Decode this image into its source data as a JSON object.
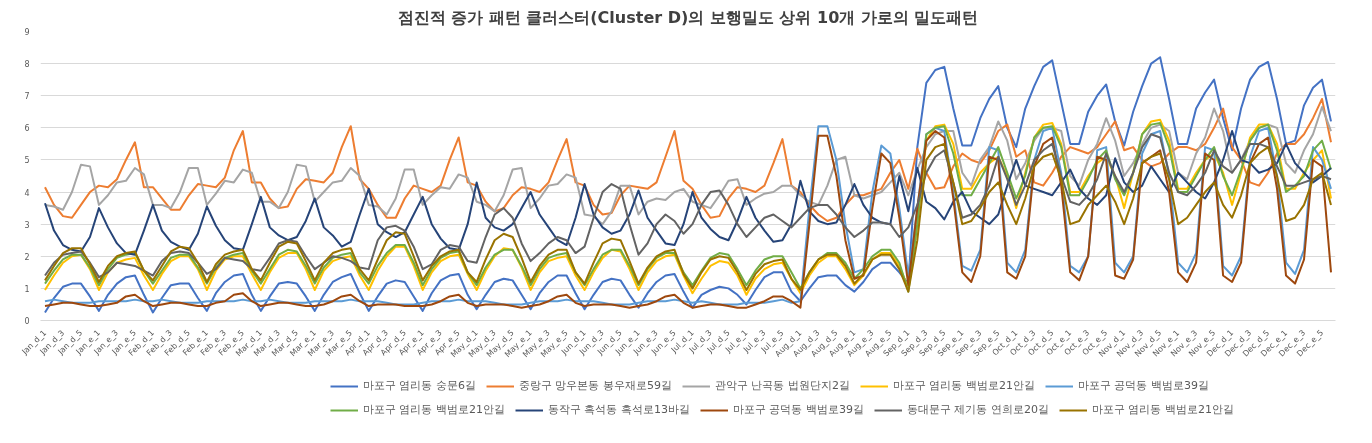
{
  "chart_data": {
    "type": "line",
    "title": "점진적 증가 패턴 클러스터(Cluster D)의 보행밀도 상위 10개 가로의 밀도패턴",
    "categories": [
      "Jan_d_1",
      null,
      "Jan_d_3",
      null,
      "Jan_d_5",
      null,
      "Jan_e_1",
      null,
      "Jan_e_3",
      null,
      "Jan_e_5",
      null,
      "Feb_d_1",
      null,
      "Feb_d_3",
      null,
      "Feb_d_5",
      null,
      "Feb_e_1",
      null,
      "Feb_e_3",
      null,
      "Feb_e_5",
      null,
      "Mar_d_1",
      null,
      "Mar_d_3",
      null,
      "Mar_d_5",
      null,
      "Mar_e_1",
      null,
      "Mar_e_3",
      null,
      "Mar_e_5",
      null,
      "Apr_d_1",
      null,
      "Apr_d_3",
      null,
      "Apr_d_5",
      null,
      "Apr_e_1",
      null,
      "Apr_e_3",
      null,
      "Apr_e_5",
      null,
      "May_d_1",
      null,
      "May_d_3",
      null,
      "May_d_5",
      null,
      "May_e_1",
      null,
      "May_e_3",
      null,
      "May_e_5",
      null,
      "Jun_d_1",
      null,
      "Jun_d_3",
      null,
      "Jun_d_5",
      null,
      "Jun_e_1",
      null,
      "Jun_e_3",
      null,
      "Jun_e_5",
      null,
      "Jul_d_1",
      null,
      "Jul_d_3",
      null,
      "Jul_d_5",
      null,
      "Jul_e_1",
      null,
      "Jul_e_3",
      null,
      "Jul_e_5",
      null,
      "Aug_d_1",
      null,
      "Aug_d_3",
      null,
      "Aug_d_5",
      null,
      "Aug_e_1",
      null,
      "Aug_e_3",
      null,
      "Aug_e_5",
      null,
      "Sep_d_1",
      null,
      "Sep_d_3",
      null,
      "Sep_d_5",
      null,
      "Sep_e_1",
      null,
      "Sep_e_3",
      null,
      "Sep_e_5",
      null,
      "Oct_d_1",
      null,
      "Oct_d_3",
      null,
      "Oct_d_5",
      null,
      "Oct_e_1",
      null,
      "Oct_e_3",
      null,
      "Oct_e_5",
      null,
      "Nov_d_1",
      null,
      "Nov_d_3",
      null,
      "Nov_d_5",
      null,
      "Nov_e_1",
      null,
      "Nov_e_3",
      null,
      "Nov_e_5",
      null,
      "Dec_d_1",
      null,
      "Dec_d_3",
      null,
      "Dec_d_5",
      null,
      "Dec_e_1",
      null,
      "Dec_e_3",
      null,
      "Dec_e_5",
      null
    ],
    "ylim": [
      0,
      9
    ],
    "yticks": [
      0,
      1,
      2,
      3,
      4,
      5,
      6,
      7,
      8,
      9
    ],
    "grid": "y",
    "legend": "bottom",
    "series": [
      {
        "name": "마포구 염리동 숭문6길",
        "color": "#4472c4",
        "values": [
          0.25,
          0.7,
          1.05,
          1.15,
          1.15,
          0.75,
          0.3,
          0.8,
          1.15,
          1.35,
          1.4,
          0.8,
          0.25,
          0.7,
          1.1,
          1.15,
          1.15,
          0.7,
          0.3,
          0.85,
          1.2,
          1.4,
          1.45,
          0.8,
          0.3,
          0.75,
          1.15,
          1.2,
          1.15,
          0.75,
          0.3,
          0.8,
          1.2,
          1.35,
          1.45,
          0.85,
          0.3,
          0.75,
          1.15,
          1.25,
          1.2,
          0.75,
          0.3,
          0.85,
          1.25,
          1.4,
          1.45,
          0.8,
          0.35,
          0.8,
          1.2,
          1.3,
          1.25,
          0.8,
          0.35,
          0.85,
          1.2,
          1.4,
          1.4,
          0.85,
          0.35,
          0.8,
          1.2,
          1.3,
          1.25,
          0.8,
          0.4,
          0.85,
          1.2,
          1.4,
          1.45,
          0.9,
          0.4,
          0.8,
          0.95,
          1.05,
          1.0,
          0.8,
          0.5,
          0.95,
          1.35,
          1.5,
          1.5,
          0.9,
          0.6,
          1.0,
          1.35,
          1.4,
          1.4,
          1.1,
          0.9,
          1.2,
          1.6,
          1.8,
          1.8,
          1.5,
          1.15,
          5.4,
          7.4,
          7.8,
          7.9,
          6.6,
          5.45,
          5.45,
          6.3,
          6.9,
          7.3,
          6.0,
          5.4,
          6.6,
          7.3,
          7.9,
          8.1,
          6.8,
          5.5,
          5.5,
          6.5,
          7.0,
          7.35,
          6.2,
          5.45,
          6.5,
          7.3,
          8.0,
          8.2,
          6.9,
          5.5,
          5.5,
          6.6,
          7.1,
          7.5,
          6.3,
          5.3,
          6.6,
          7.5,
          7.9,
          8.05,
          6.9,
          5.5,
          5.6,
          6.7,
          7.25,
          7.5,
          6.2
        ]
      },
      {
        "name": "중랑구 망우본동 봉우재로59길",
        "color": "#ed7d31",
        "values": [
          4.15,
          3.6,
          3.25,
          3.2,
          3.6,
          4.0,
          4.2,
          4.15,
          4.4,
          5.0,
          5.55,
          4.15,
          4.15,
          3.8,
          3.45,
          3.45,
          3.9,
          4.25,
          4.2,
          4.15,
          4.45,
          5.3,
          5.9,
          4.3,
          4.3,
          3.8,
          3.5,
          3.55,
          4.1,
          4.4,
          4.35,
          4.3,
          4.6,
          5.4,
          6.05,
          4.4,
          4.1,
          3.6,
          3.2,
          3.2,
          3.8,
          4.2,
          4.1,
          4.0,
          4.2,
          5.0,
          5.7,
          4.3,
          4.2,
          3.7,
          3.4,
          3.5,
          3.9,
          4.15,
          4.1,
          4.0,
          4.3,
          5.0,
          5.65,
          4.3,
          4.2,
          3.6,
          3.3,
          3.35,
          3.9,
          4.2,
          4.15,
          4.1,
          4.3,
          5.1,
          5.9,
          4.35,
          4.1,
          3.6,
          3.2,
          3.25,
          3.8,
          4.15,
          4.1,
          4.0,
          4.2,
          4.9,
          5.65,
          4.2,
          4.0,
          3.6,
          3.3,
          3.1,
          3.2,
          3.6,
          3.9,
          3.9,
          4.0,
          4.1,
          4.6,
          5.0,
          4.1,
          5.35,
          4.6,
          4.1,
          4.15,
          4.8,
          5.2,
          5.0,
          4.9,
          5.3,
          5.9,
          6.1,
          5.1,
          5.3,
          4.3,
          4.2,
          4.6,
          5.1,
          5.4,
          5.3,
          5.2,
          5.4,
          5.8,
          6.2,
          5.3,
          5.4,
          5.0,
          4.8,
          4.9,
          5.2,
          5.4,
          5.4,
          5.3,
          5.5,
          6.0,
          6.6,
          5.4,
          5.0,
          4.3,
          4.2,
          4.6,
          5.2,
          5.5,
          5.5,
          5.8,
          6.3,
          6.9,
          5.55
        ]
      },
      {
        "name": "관악구 난곡동 법원단지2길",
        "color": "#a5a5a5",
        "values": [
          3.6,
          3.55,
          3.45,
          4.0,
          4.85,
          4.8,
          3.6,
          3.9,
          4.3,
          4.35,
          4.75,
          4.55,
          3.6,
          3.6,
          3.5,
          4.0,
          4.75,
          4.75,
          3.6,
          3.95,
          4.35,
          4.3,
          4.7,
          4.6,
          3.7,
          3.7,
          3.5,
          4.0,
          4.85,
          4.8,
          3.7,
          4.0,
          4.3,
          4.35,
          4.75,
          4.5,
          3.6,
          3.55,
          3.3,
          3.8,
          4.7,
          4.7,
          3.6,
          3.9,
          4.15,
          4.1,
          4.55,
          4.45,
          3.7,
          3.6,
          3.4,
          3.9,
          4.7,
          4.75,
          3.5,
          3.8,
          4.2,
          4.25,
          4.55,
          4.45,
          3.3,
          3.25,
          3.0,
          3.4,
          4.2,
          4.2,
          3.3,
          3.7,
          3.8,
          3.75,
          4.0,
          4.1,
          3.7,
          3.6,
          3.5,
          3.9,
          4.35,
          4.4,
          3.6,
          3.8,
          3.95,
          4.0,
          4.2,
          4.2,
          3.9,
          3.7,
          3.6,
          4.2,
          5.0,
          5.1,
          3.9,
          3.8,
          3.9,
          4.0,
          4.3,
          4.6,
          3.9,
          4.7,
          5.4,
          5.8,
          5.9,
          5.9,
          4.6,
          4.2,
          5.0,
          5.4,
          6.2,
          5.6,
          4.4,
          4.9,
          5.6,
          6.0,
          6.0,
          5.9,
          4.5,
          4.2,
          5.0,
          5.5,
          6.3,
          5.6,
          4.5,
          4.9,
          5.5,
          6.0,
          6.1,
          5.9,
          4.6,
          4.4,
          5.2,
          5.7,
          6.6,
          5.9,
          4.6,
          5.0,
          5.6,
          6.0,
          6.1,
          6.0,
          4.9,
          4.6,
          5.3,
          5.8,
          6.65,
          5.9
        ]
      },
      {
        "name": "마포구 염리동 백범로21안길",
        "color": "#ffc000",
        "values": [
          0.95,
          1.4,
          1.8,
          2.0,
          2.05,
          1.6,
          0.95,
          1.5,
          1.8,
          1.9,
          1.95,
          1.4,
          0.95,
          1.45,
          1.85,
          2.0,
          2.0,
          1.6,
          0.95,
          1.55,
          1.9,
          2.0,
          2.0,
          1.45,
          0.95,
          1.5,
          1.95,
          2.1,
          2.1,
          1.6,
          0.95,
          1.55,
          1.85,
          1.95,
          2.0,
          1.4,
          0.95,
          1.55,
          2.0,
          2.3,
          2.3,
          1.7,
          0.95,
          1.5,
          1.85,
          2.0,
          2.05,
          1.45,
          0.95,
          1.55,
          2.0,
          2.25,
          2.2,
          1.65,
          0.95,
          1.5,
          1.85,
          1.95,
          2.0,
          1.4,
          0.95,
          1.5,
          1.95,
          2.2,
          2.15,
          1.6,
          0.95,
          1.5,
          1.85,
          2.0,
          2.05,
          1.4,
          0.85,
          1.3,
          1.7,
          1.85,
          1.8,
          1.4,
          0.8,
          1.3,
          1.6,
          1.75,
          1.8,
          1.3,
          0.85,
          1.4,
          1.8,
          2.0,
          2.0,
          1.6,
          1.1,
          1.4,
          1.9,
          2.1,
          2.1,
          1.7,
          1.0,
          3.0,
          5.6,
          6.05,
          6.1,
          5.5,
          4.1,
          4.1,
          4.6,
          4.9,
          5.1,
          4.5,
          3.5,
          4.6,
          5.7,
          6.1,
          6.15,
          5.5,
          4.0,
          4.0,
          4.5,
          4.9,
          5.1,
          4.5,
          3.5,
          4.6,
          5.8,
          6.2,
          6.25,
          5.6,
          4.1,
          4.1,
          4.6,
          5.0,
          5.2,
          4.6,
          3.6,
          4.6,
          5.7,
          6.1,
          6.1,
          5.5,
          4.1,
          4.1,
          4.6,
          5.0,
          5.3,
          3.8
        ]
      },
      {
        "name": "마포구 공덕동 백범로39길",
        "color": "#5b9bd5",
        "values": [
          0.6,
          0.65,
          0.6,
          0.55,
          0.55,
          0.55,
          0.6,
          0.6,
          0.6,
          0.6,
          0.65,
          0.6,
          0.6,
          0.65,
          0.6,
          0.55,
          0.55,
          0.55,
          0.6,
          0.6,
          0.6,
          0.6,
          0.65,
          0.6,
          0.6,
          0.65,
          0.6,
          0.55,
          0.55,
          0.55,
          0.6,
          0.6,
          0.6,
          0.6,
          0.65,
          0.6,
          0.6,
          0.6,
          0.55,
          0.5,
          0.5,
          0.5,
          0.55,
          0.6,
          0.6,
          0.6,
          0.65,
          0.6,
          0.6,
          0.6,
          0.55,
          0.5,
          0.5,
          0.5,
          0.55,
          0.6,
          0.6,
          0.6,
          0.65,
          0.6,
          0.6,
          0.6,
          0.55,
          0.5,
          0.5,
          0.5,
          0.55,
          0.6,
          0.6,
          0.6,
          0.65,
          0.6,
          0.55,
          0.6,
          0.55,
          0.5,
          0.5,
          0.5,
          0.55,
          0.55,
          0.55,
          0.6,
          0.65,
          0.55,
          0.6,
          3.5,
          6.05,
          6.05,
          5.0,
          3.0,
          1.5,
          1.6,
          4.0,
          5.45,
          5.2,
          3.5,
          1.4,
          3.5,
          5.8,
          6.0,
          5.9,
          4.0,
          1.7,
          1.55,
          2.2,
          5.4,
          5.3,
          1.8,
          1.5,
          2.2,
          5.0,
          5.9,
          6.0,
          4.6,
          1.7,
          1.5,
          2.0,
          5.3,
          5.4,
          1.8,
          1.5,
          2.0,
          5.2,
          5.8,
          5.9,
          4.5,
          1.8,
          1.5,
          2.1,
          5.4,
          5.3,
          1.7,
          1.4,
          2.0,
          5.1,
          5.9,
          6.0,
          4.5,
          1.8,
          1.45,
          2.2,
          5.4,
          5.0,
          4.1
        ]
      },
      {
        "name": "마포구 염리동 백범로21안길",
        "color": "#70ad47",
        "values": [
          1.15,
          1.55,
          1.9,
          2.05,
          2.05,
          1.65,
          1.1,
          1.6,
          1.95,
          2.05,
          2.1,
          1.55,
          1.15,
          1.55,
          1.95,
          2.05,
          2.05,
          1.65,
          1.15,
          1.65,
          1.95,
          2.05,
          2.1,
          1.55,
          1.15,
          1.6,
          2.05,
          2.2,
          2.15,
          1.7,
          1.15,
          1.65,
          1.95,
          2.05,
          2.1,
          1.5,
          1.15,
          1.7,
          2.1,
          2.35,
          2.35,
          1.8,
          1.1,
          1.6,
          1.95,
          2.1,
          2.15,
          1.5,
          1.1,
          1.65,
          2.05,
          2.2,
          2.2,
          1.7,
          1.1,
          1.6,
          1.95,
          2.05,
          2.1,
          1.5,
          1.1,
          1.6,
          2.05,
          2.2,
          2.2,
          1.7,
          1.1,
          1.6,
          1.95,
          2.1,
          2.1,
          1.5,
          1.1,
          1.55,
          1.95,
          2.1,
          2.05,
          1.6,
          1.1,
          1.55,
          1.9,
          2.0,
          2.0,
          1.5,
          1.0,
          1.5,
          1.9,
          2.1,
          2.1,
          1.8,
          1.3,
          1.6,
          2.0,
          2.2,
          2.2,
          1.8,
          0.9,
          3.0,
          5.8,
          6.0,
          6.05,
          5.2,
          3.9,
          3.9,
          4.4,
          4.9,
          5.4,
          4.6,
          3.8,
          4.5,
          5.7,
          6.0,
          6.05,
          5.4,
          3.9,
          3.9,
          4.4,
          5.0,
          5.3,
          4.4,
          3.9,
          4.6,
          5.8,
          6.1,
          6.15,
          5.4,
          4.0,
          4.0,
          4.5,
          5.0,
          5.4,
          4.5,
          3.9,
          4.7,
          5.6,
          6.0,
          6.1,
          5.3,
          4.0,
          4.2,
          4.5,
          5.3,
          5.6,
          4.7
        ]
      },
      {
        "name": "동작구 흑석동 흑석로13바길",
        "color": "#264478",
        "values": [
          3.65,
          2.8,
          2.35,
          2.2,
          2.15,
          2.6,
          3.5,
          2.9,
          2.4,
          2.1,
          2.05,
          2.8,
          3.6,
          2.8,
          2.45,
          2.3,
          2.2,
          2.7,
          3.55,
          2.95,
          2.5,
          2.25,
          2.2,
          3.0,
          3.85,
          2.9,
          2.65,
          2.5,
          2.6,
          3.1,
          3.8,
          2.9,
          2.65,
          2.3,
          2.45,
          3.3,
          4.1,
          3.0,
          2.75,
          2.6,
          2.75,
          3.3,
          3.85,
          3.0,
          2.55,
          2.25,
          2.2,
          3.0,
          4.3,
          3.2,
          2.9,
          2.8,
          3.0,
          3.5,
          4.0,
          3.3,
          2.9,
          2.5,
          2.35,
          3.2,
          4.25,
          3.3,
          2.9,
          2.7,
          2.8,
          3.3,
          4.05,
          3.2,
          2.8,
          2.4,
          2.35,
          3.0,
          4.0,
          3.2,
          2.85,
          2.6,
          2.5,
          3.1,
          3.85,
          3.2,
          2.8,
          2.45,
          2.5,
          3.0,
          4.35,
          3.4,
          3.1,
          3.0,
          3.05,
          3.6,
          4.25,
          3.6,
          3.2,
          3.05,
          3.0,
          4.5,
          3.4,
          4.75,
          3.7,
          3.5,
          3.15,
          3.7,
          4.0,
          3.4,
          3.2,
          3.0,
          3.3,
          4.2,
          5.0,
          4.2,
          4.1,
          4.0,
          3.9,
          4.3,
          4.7,
          4.1,
          3.8,
          3.6,
          3.9,
          5.05,
          4.3,
          4.0,
          4.2,
          4.8,
          4.4,
          4.0,
          4.6,
          4.3,
          4.0,
          3.8,
          4.3,
          5.0,
          5.9,
          5.0,
          4.9,
          4.6,
          4.7,
          4.9,
          5.5,
          4.9,
          4.6,
          4.3,
          4.5,
          4.75
        ]
      },
      {
        "name": "마포구 공덕동 백범로39길",
        "color": "#9e480e",
        "values": [
          0.45,
          0.5,
          0.55,
          0.55,
          0.5,
          0.45,
          0.45,
          0.5,
          0.55,
          0.75,
          0.8,
          0.6,
          0.45,
          0.5,
          0.55,
          0.55,
          0.5,
          0.45,
          0.45,
          0.55,
          0.6,
          0.8,
          0.85,
          0.6,
          0.45,
          0.5,
          0.55,
          0.55,
          0.5,
          0.45,
          0.45,
          0.5,
          0.6,
          0.75,
          0.8,
          0.6,
          0.45,
          0.5,
          0.5,
          0.5,
          0.45,
          0.45,
          0.45,
          0.5,
          0.6,
          0.75,
          0.8,
          0.55,
          0.45,
          0.5,
          0.5,
          0.5,
          0.45,
          0.4,
          0.45,
          0.5,
          0.6,
          0.75,
          0.8,
          0.55,
          0.45,
          0.5,
          0.5,
          0.5,
          0.45,
          0.4,
          0.45,
          0.5,
          0.6,
          0.75,
          0.8,
          0.55,
          0.4,
          0.45,
          0.5,
          0.5,
          0.45,
          0.4,
          0.4,
          0.5,
          0.6,
          0.75,
          0.75,
          0.6,
          0.4,
          3.0,
          5.75,
          5.75,
          4.5,
          2.5,
          1.3,
          1.4,
          3.5,
          5.2,
          4.9,
          3.2,
          1.1,
          3.5,
          5.6,
          5.9,
          5.7,
          3.8,
          1.5,
          1.2,
          2.0,
          5.1,
          5.0,
          1.5,
          1.3,
          2.0,
          4.8,
          5.5,
          5.7,
          4.2,
          1.5,
          1.25,
          2.0,
          5.1,
          5.0,
          1.4,
          1.3,
          1.9,
          4.9,
          5.1,
          5.3,
          4.0,
          1.5,
          1.2,
          1.8,
          5.2,
          5.0,
          1.4,
          1.2,
          1.8,
          4.9,
          5.5,
          5.7,
          4.1,
          1.4,
          1.15,
          1.9,
          5.0,
          4.8,
          1.5
        ]
      },
      {
        "name": "동대문구 제기동 연희로20길",
        "color": "#636363",
        "values": [
          1.4,
          1.8,
          2.05,
          2.1,
          2.15,
          1.8,
          1.35,
          1.5,
          1.8,
          1.75,
          1.7,
          1.55,
          1.4,
          1.85,
          2.1,
          2.15,
          2.1,
          1.8,
          1.45,
          1.6,
          1.95,
          1.9,
          1.85,
          1.6,
          1.55,
          1.95,
          2.4,
          2.5,
          2.45,
          2.0,
          1.6,
          1.8,
          2.0,
          1.95,
          1.85,
          1.65,
          1.6,
          2.5,
          2.9,
          2.95,
          2.8,
          2.3,
          1.6,
          1.75,
          2.2,
          2.35,
          2.3,
          1.85,
          1.8,
          2.6,
          3.3,
          3.5,
          3.2,
          2.4,
          1.85,
          2.1,
          2.4,
          2.6,
          2.5,
          2.1,
          2.3,
          3.2,
          4.0,
          4.25,
          4.1,
          3.0,
          2.05,
          2.4,
          3.0,
          3.3,
          3.1,
          2.7,
          3.0,
          3.6,
          4.0,
          4.05,
          3.6,
          3.0,
          2.6,
          2.9,
          3.2,
          3.3,
          3.1,
          2.9,
          3.2,
          3.5,
          3.6,
          3.6,
          3.3,
          2.9,
          2.6,
          2.8,
          3.05,
          3.05,
          3.0,
          2.6,
          2.9,
          3.6,
          4.6,
          5.1,
          5.3,
          4.3,
          3.2,
          3.3,
          3.6,
          4.2,
          5.1,
          4.4,
          3.6,
          4.2,
          5.0,
          5.3,
          5.5,
          4.5,
          3.7,
          3.6,
          3.9,
          4.4,
          5.2,
          4.5,
          4.0,
          4.6,
          5.4,
          5.8,
          5.7,
          4.6,
          4.0,
          3.9,
          4.2,
          4.6,
          5.3,
          4.8,
          4.6,
          5.0,
          5.5,
          5.5,
          5.4,
          4.8,
          4.2,
          4.2,
          4.3,
          4.4,
          4.5,
          4.4
        ]
      },
      {
        "name": "마포구 염리동 백범로21안길",
        "color": "#997300",
        "values": [
          1.25,
          1.7,
          2.1,
          2.25,
          2.25,
          1.75,
          1.2,
          1.7,
          2.0,
          2.1,
          2.15,
          1.55,
          1.25,
          1.7,
          2.15,
          2.3,
          2.25,
          1.8,
          1.2,
          1.75,
          2.05,
          2.15,
          2.2,
          1.6,
          1.25,
          1.8,
          2.3,
          2.45,
          2.4,
          1.85,
          1.25,
          1.8,
          2.1,
          2.2,
          2.25,
          1.6,
          1.25,
          1.9,
          2.5,
          2.75,
          2.7,
          2.0,
          1.25,
          1.7,
          2.0,
          2.15,
          2.2,
          1.5,
          1.2,
          1.9,
          2.5,
          2.7,
          2.6,
          1.95,
          1.2,
          1.7,
          2.05,
          2.2,
          2.2,
          1.5,
          1.15,
          1.8,
          2.4,
          2.55,
          2.5,
          1.85,
          1.15,
          1.65,
          2.0,
          2.15,
          2.2,
          1.45,
          1.0,
          1.5,
          1.9,
          2.0,
          1.95,
          1.5,
          0.95,
          1.45,
          1.75,
          1.85,
          1.9,
          1.3,
          0.95,
          1.5,
          1.9,
          2.05,
          2.05,
          1.7,
          1.15,
          1.45,
          1.9,
          2.05,
          2.05,
          1.6,
          0.9,
          2.5,
          5.0,
          5.4,
          5.5,
          4.3,
          3.0,
          3.1,
          3.5,
          4.0,
          4.3,
          3.6,
          3.0,
          3.8,
          4.8,
          5.1,
          5.2,
          4.4,
          3.0,
          3.1,
          3.6,
          3.9,
          4.2,
          3.7,
          3.0,
          3.8,
          4.9,
          5.1,
          5.2,
          4.4,
          3.0,
          3.2,
          3.6,
          4.0,
          4.3,
          3.6,
          3.2,
          3.9,
          4.9,
          5.2,
          5.4,
          4.5,
          3.1,
          3.2,
          3.6,
          4.4,
          4.6,
          3.6
        ]
      }
    ]
  }
}
